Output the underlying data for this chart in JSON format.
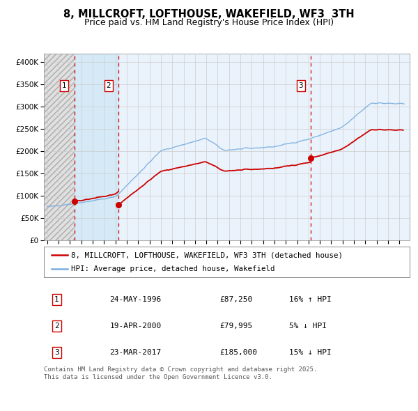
{
  "title": "8, MILLCROFT, LOFTHOUSE, WAKEFIELD, WF3  3TH",
  "subtitle": "Price paid vs. HM Land Registry's House Price Index (HPI)",
  "legend_entry1": "8, MILLCROFT, LOFTHOUSE, WAKEFIELD, WF3 3TH (detached house)",
  "legend_entry2": "HPI: Average price, detached house, Wakefield",
  "footer": "Contains HM Land Registry data © Crown copyright and database right 2025.\nThis data is licensed under the Open Government Licence v3.0.",
  "transaction_display": [
    {
      "num": 1,
      "date_str": "24-MAY-1996",
      "price_str": "£87,250",
      "pct_str": "16% ↑ HPI"
    },
    {
      "num": 2,
      "date_str": "19-APR-2000",
      "price_str": "£79,995",
      "pct_str": "5% ↓ HPI"
    },
    {
      "num": 3,
      "date_str": "23-MAR-2017",
      "price_str": "£185,000",
      "pct_str": "15% ↓ HPI"
    }
  ],
  "t1_year": 1996.37,
  "t2_year": 2000.29,
  "t3_year": 2017.22,
  "t1_price": 87250,
  "t2_price": 79995,
  "t3_price": 185000,
  "ylim_max": 420000,
  "yticks": [
    0,
    50000,
    100000,
    150000,
    200000,
    250000,
    300000,
    350000,
    400000
  ],
  "ytick_labels": [
    "£0",
    "£50K",
    "£100K",
    "£150K",
    "£200K",
    "£250K",
    "£300K",
    "£350K",
    "£400K"
  ],
  "price_color": "#cc0000",
  "hpi_color": "#7aade0",
  "vline_color": "#cc0000",
  "plot_bg_color": "#ffffff",
  "shade_color": "#daeaf7",
  "hatch_color": "#cccccc",
  "grid_color": "#cccccc",
  "title_fontsize": 10.5,
  "subtitle_fontsize": 9,
  "axis_fontsize": 7.5,
  "legend_fontsize": 8,
  "table_fontsize": 8,
  "footer_fontsize": 6.5
}
